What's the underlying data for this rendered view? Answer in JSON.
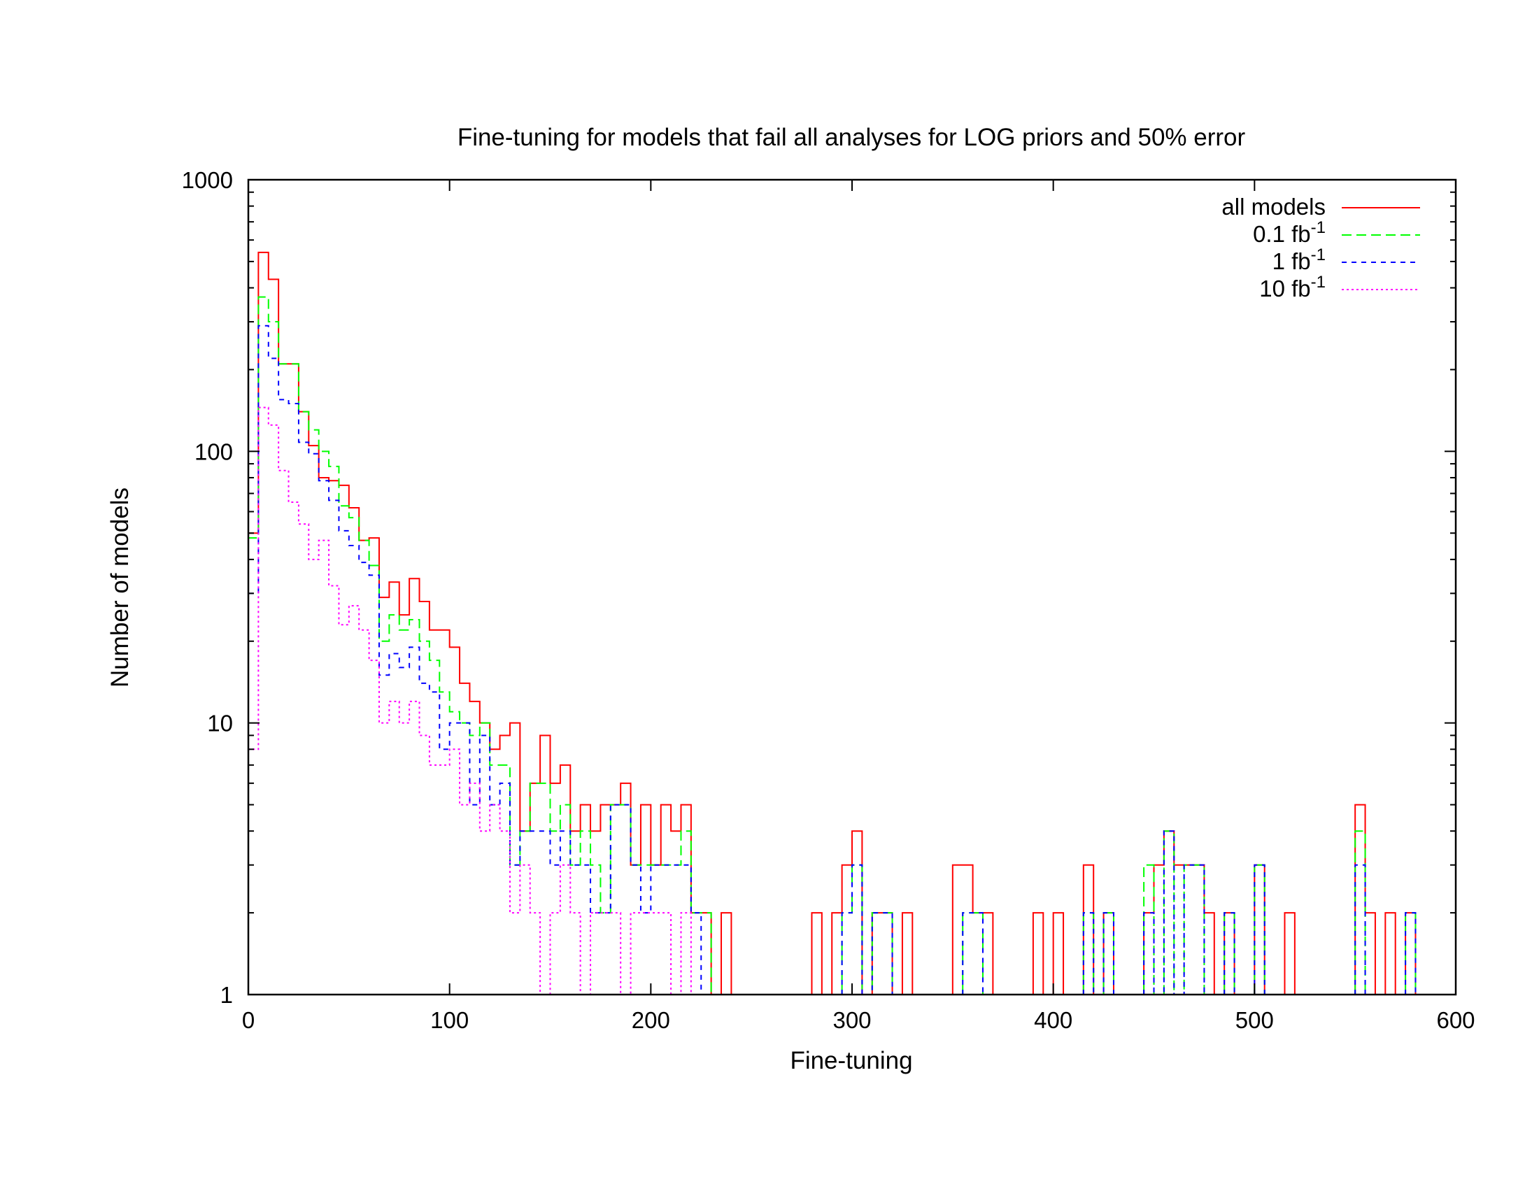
{
  "chart_data": {
    "type": "histogram",
    "title": "Fine-tuning for models that fail all analyses for LOG priors and 50% error",
    "xlabel": "Fine-tuning",
    "ylabel": "Number of models",
    "xlim": [
      0,
      600
    ],
    "ylim": [
      1,
      1000
    ],
    "y_scale": "log",
    "x_ticks": [
      "0",
      "100",
      "200",
      "300",
      "400",
      "500",
      "600"
    ],
    "y_ticks": [
      "1",
      "10",
      "100",
      "1000"
    ],
    "grid": false,
    "legend_position": "top-right",
    "bin_width": 5,
    "series": [
      {
        "name": "all models",
        "superscript": "",
        "color": "#ff0000",
        "dash": "none",
        "bins": [
          [
            0,
            50
          ],
          [
            5,
            540
          ],
          [
            10,
            430
          ],
          [
            15,
            210
          ],
          [
            20,
            210
          ],
          [
            25,
            140
          ],
          [
            30,
            105
          ],
          [
            35,
            80
          ],
          [
            40,
            78
          ],
          [
            45,
            75
          ],
          [
            50,
            62
          ],
          [
            55,
            47
          ],
          [
            60,
            48
          ],
          [
            65,
            29
          ],
          [
            70,
            33
          ],
          [
            75,
            25
          ],
          [
            80,
            34
          ],
          [
            85,
            28
          ],
          [
            90,
            22
          ],
          [
            95,
            22
          ],
          [
            100,
            19
          ],
          [
            105,
            14
          ],
          [
            110,
            12
          ],
          [
            115,
            10
          ],
          [
            120,
            8
          ],
          [
            125,
            9
          ],
          [
            130,
            10
          ],
          [
            135,
            4
          ],
          [
            140,
            6
          ],
          [
            145,
            9
          ],
          [
            150,
            6
          ],
          [
            155,
            7
          ],
          [
            160,
            4
          ],
          [
            165,
            5
          ],
          [
            170,
            4
          ],
          [
            175,
            5
          ],
          [
            180,
            5
          ],
          [
            185,
            6
          ],
          [
            190,
            3
          ],
          [
            195,
            5
          ],
          [
            200,
            3
          ],
          [
            205,
            5
          ],
          [
            210,
            4
          ],
          [
            215,
            5
          ],
          [
            220,
            2
          ],
          [
            225,
            2
          ],
          [
            230,
            1
          ],
          [
            235,
            2
          ],
          [
            280,
            2
          ],
          [
            285,
            1
          ],
          [
            290,
            2
          ],
          [
            295,
            3
          ],
          [
            300,
            4
          ],
          [
            305,
            1
          ],
          [
            310,
            2
          ],
          [
            315,
            2
          ],
          [
            320,
            1
          ],
          [
            325,
            2
          ],
          [
            330,
            1
          ],
          [
            350,
            3
          ],
          [
            355,
            3
          ],
          [
            360,
            2
          ],
          [
            365,
            2
          ],
          [
            390,
            2
          ],
          [
            395,
            1
          ],
          [
            400,
            2
          ],
          [
            415,
            3
          ],
          [
            420,
            1
          ],
          [
            425,
            2
          ],
          [
            430,
            1
          ],
          [
            445,
            2
          ],
          [
            450,
            3
          ],
          [
            455,
            4
          ],
          [
            460,
            3
          ],
          [
            465,
            3
          ],
          [
            470,
            3
          ],
          [
            475,
            2
          ],
          [
            485,
            2
          ],
          [
            490,
            1
          ],
          [
            500,
            3
          ],
          [
            505,
            1
          ],
          [
            515,
            2
          ],
          [
            520,
            1
          ],
          [
            550,
            5
          ],
          [
            555,
            2
          ],
          [
            565,
            2
          ],
          [
            575,
            2
          ],
          [
            580,
            1
          ]
        ]
      },
      {
        "name": "0.1 fb",
        "superscript": "-1",
        "color": "#00ff00",
        "dash": "14 7",
        "bins": [
          [
            0,
            48
          ],
          [
            5,
            370
          ],
          [
            10,
            300
          ],
          [
            15,
            210
          ],
          [
            20,
            210
          ],
          [
            25,
            140
          ],
          [
            30,
            120
          ],
          [
            35,
            100
          ],
          [
            40,
            88
          ],
          [
            45,
            63
          ],
          [
            50,
            57
          ],
          [
            55,
            47
          ],
          [
            60,
            38
          ],
          [
            65,
            20
          ],
          [
            70,
            25
          ],
          [
            75,
            22
          ],
          [
            80,
            24
          ],
          [
            85,
            20
          ],
          [
            90,
            17
          ],
          [
            95,
            13
          ],
          [
            100,
            11
          ],
          [
            105,
            10
          ],
          [
            110,
            9
          ],
          [
            115,
            10
          ],
          [
            120,
            7
          ],
          [
            125,
            7
          ],
          [
            130,
            3
          ],
          [
            135,
            4
          ],
          [
            140,
            6
          ],
          [
            145,
            6
          ],
          [
            150,
            4
          ],
          [
            155,
            5
          ],
          [
            160,
            3
          ],
          [
            165,
            4
          ],
          [
            170,
            3
          ],
          [
            175,
            2
          ],
          [
            180,
            5
          ],
          [
            185,
            5
          ],
          [
            190,
            3
          ],
          [
            195,
            3
          ],
          [
            200,
            3
          ],
          [
            205,
            3
          ],
          [
            210,
            3
          ],
          [
            215,
            4
          ],
          [
            220,
            2
          ],
          [
            225,
            2
          ],
          [
            230,
            1
          ],
          [
            295,
            2
          ],
          [
            300,
            3
          ],
          [
            305,
            1
          ],
          [
            310,
            2
          ],
          [
            315,
            2
          ],
          [
            320,
            1
          ],
          [
            355,
            2
          ],
          [
            360,
            2
          ],
          [
            365,
            1
          ],
          [
            415,
            2
          ],
          [
            420,
            1
          ],
          [
            425,
            2
          ],
          [
            430,
            1
          ],
          [
            445,
            3
          ],
          [
            450,
            1
          ],
          [
            455,
            4
          ],
          [
            460,
            1
          ],
          [
            465,
            3
          ],
          [
            470,
            3
          ],
          [
            475,
            1
          ],
          [
            485,
            2
          ],
          [
            490,
            1
          ],
          [
            500,
            3
          ],
          [
            505,
            1
          ],
          [
            550,
            4
          ],
          [
            555,
            1
          ],
          [
            575,
            2
          ],
          [
            580,
            1
          ]
        ]
      },
      {
        "name": "1 fb",
        "superscript": "-1",
        "color": "#0000ff",
        "dash": "7 7",
        "bins": [
          [
            0,
            30
          ],
          [
            5,
            290
          ],
          [
            10,
            220
          ],
          [
            15,
            155
          ],
          [
            20,
            150
          ],
          [
            25,
            108
          ],
          [
            30,
            98
          ],
          [
            35,
            78
          ],
          [
            40,
            66
          ],
          [
            45,
            51
          ],
          [
            50,
            45
          ],
          [
            55,
            39
          ],
          [
            60,
            35
          ],
          [
            65,
            15
          ],
          [
            70,
            18
          ],
          [
            75,
            16
          ],
          [
            80,
            19
          ],
          [
            85,
            14
          ],
          [
            90,
            13
          ],
          [
            95,
            8
          ],
          [
            100,
            10
          ],
          [
            105,
            10
          ],
          [
            110,
            5
          ],
          [
            115,
            9
          ],
          [
            120,
            5
          ],
          [
            125,
            6
          ],
          [
            130,
            3
          ],
          [
            135,
            4
          ],
          [
            140,
            4
          ],
          [
            145,
            4
          ],
          [
            150,
            3
          ],
          [
            155,
            4
          ],
          [
            160,
            3
          ],
          [
            165,
            3
          ],
          [
            170,
            2
          ],
          [
            175,
            2
          ],
          [
            180,
            5
          ],
          [
            185,
            5
          ],
          [
            190,
            3
          ],
          [
            195,
            2
          ],
          [
            200,
            3
          ],
          [
            205,
            3
          ],
          [
            210,
            3
          ],
          [
            215,
            3
          ],
          [
            220,
            2
          ],
          [
            225,
            1
          ],
          [
            295,
            2
          ],
          [
            300,
            3
          ],
          [
            305,
            1
          ],
          [
            310,
            2
          ],
          [
            315,
            2
          ],
          [
            320,
            1
          ],
          [
            355,
            2
          ],
          [
            360,
            2
          ],
          [
            365,
            1
          ],
          [
            415,
            2
          ],
          [
            420,
            1
          ],
          [
            425,
            2
          ],
          [
            430,
            1
          ],
          [
            445,
            2
          ],
          [
            450,
            1
          ],
          [
            455,
            4
          ],
          [
            460,
            1
          ],
          [
            465,
            3
          ],
          [
            470,
            3
          ],
          [
            475,
            1
          ],
          [
            485,
            2
          ],
          [
            490,
            1
          ],
          [
            500,
            3
          ],
          [
            505,
            1
          ],
          [
            550,
            3
          ],
          [
            555,
            1
          ],
          [
            575,
            2
          ],
          [
            580,
            1
          ]
        ]
      },
      {
        "name": "10 fb",
        "superscript": "-1",
        "color": "#ff00ff",
        "dash": "3 4",
        "bins": [
          [
            0,
            8
          ],
          [
            5,
            145
          ],
          [
            10,
            125
          ],
          [
            15,
            85
          ],
          [
            20,
            65
          ],
          [
            25,
            54
          ],
          [
            30,
            40
          ],
          [
            35,
            47
          ],
          [
            40,
            32
          ],
          [
            45,
            23
          ],
          [
            50,
            27
          ],
          [
            55,
            22
          ],
          [
            60,
            17
          ],
          [
            65,
            10
          ],
          [
            70,
            12
          ],
          [
            75,
            10
          ],
          [
            80,
            12
          ],
          [
            85,
            9
          ],
          [
            90,
            7
          ],
          [
            95,
            7
          ],
          [
            100,
            8
          ],
          [
            105,
            5
          ],
          [
            110,
            6
          ],
          [
            115,
            4
          ],
          [
            120,
            5
          ],
          [
            125,
            4
          ],
          [
            130,
            2
          ],
          [
            135,
            3
          ],
          [
            140,
            2
          ],
          [
            145,
            1
          ],
          [
            150,
            2
          ],
          [
            155,
            3
          ],
          [
            160,
            2
          ],
          [
            165,
            1
          ],
          [
            170,
            2
          ],
          [
            175,
            2
          ],
          [
            180,
            2
          ],
          [
            185,
            1
          ],
          [
            190,
            2
          ],
          [
            195,
            2
          ],
          [
            200,
            2
          ],
          [
            205,
            2
          ],
          [
            210,
            1
          ],
          [
            215,
            2
          ],
          [
            220,
            1
          ]
        ]
      }
    ]
  }
}
